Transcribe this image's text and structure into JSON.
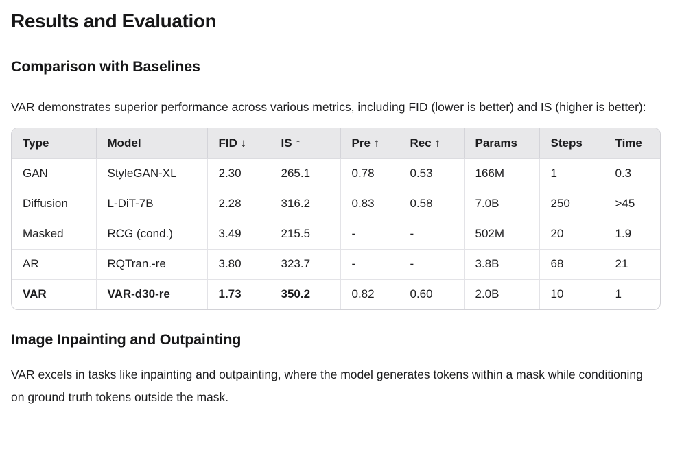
{
  "page": {
    "title": "Results and Evaluation",
    "section1": {
      "heading": "Comparison with Baselines",
      "paragraph": "VAR demonstrates superior performance across various metrics, including FID (lower is better) and IS (higher is better):"
    },
    "table": {
      "columns": [
        "Type",
        "Model",
        "FID ↓",
        "IS ↑",
        "Pre ↑",
        "Rec ↑",
        "Params",
        "Steps",
        "Time"
      ],
      "rows": [
        {
          "cells": [
            "GAN",
            "StyleGAN-XL",
            "2.30",
            "265.1",
            "0.78",
            "0.53",
            "166M",
            "1",
            "0.3"
          ],
          "bold_cells": []
        },
        {
          "cells": [
            "Diffusion",
            "L-DiT-7B",
            "2.28",
            "316.2",
            "0.83",
            "0.58",
            "7.0B",
            "250",
            ">45"
          ],
          "bold_cells": []
        },
        {
          "cells": [
            "Masked",
            "RCG (cond.)",
            "3.49",
            "215.5",
            "-",
            "-",
            "502M",
            "20",
            "1.9"
          ],
          "bold_cells": []
        },
        {
          "cells": [
            "AR",
            "RQTran.-re",
            "3.80",
            "323.7",
            "-",
            "-",
            "3.8B",
            "68",
            "21"
          ],
          "bold_cells": []
        },
        {
          "cells": [
            "VAR",
            "VAR-d30-re",
            "1.73",
            "350.2",
            "0.82",
            "0.60",
            "2.0B",
            "10",
            "1"
          ],
          "bold_cells": [
            0,
            1,
            2,
            3
          ]
        }
      ]
    },
    "section2": {
      "heading": "Image Inpainting and Outpainting",
      "paragraph": "VAR excels in tasks like inpainting and outpainting, where the model generates tokens within a mask while conditioning on ground truth tokens outside the mask."
    },
    "colors": {
      "background": "#ffffff",
      "text": "#1d1d1f",
      "table_header_bg": "#e8e8ea",
      "table_outer_border": "#d2d2d7",
      "table_inner_border": "#e3e3e7"
    }
  }
}
